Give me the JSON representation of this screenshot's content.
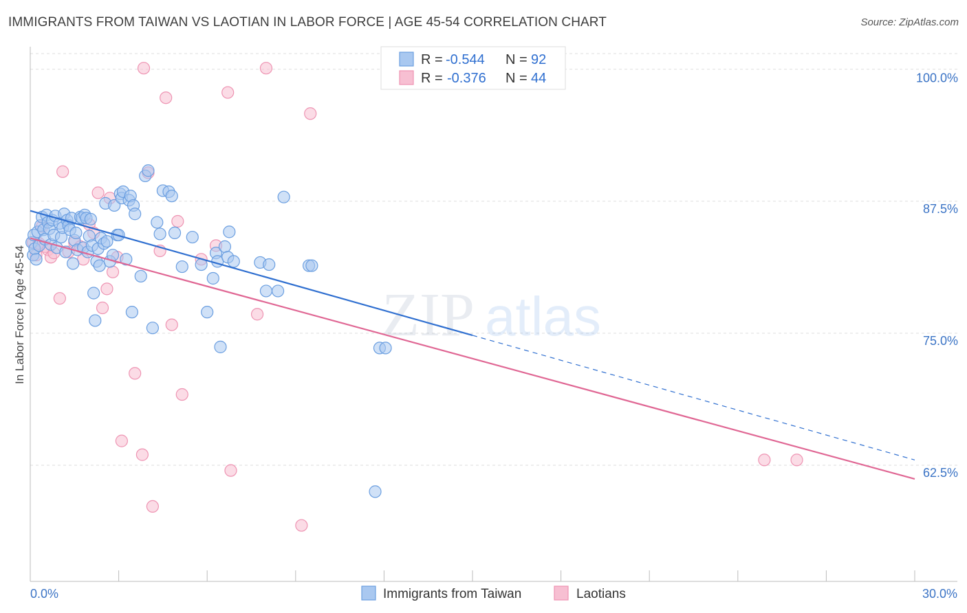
{
  "title": "IMMIGRANTS FROM TAIWAN VS LAOTIAN IN LABOR FORCE | AGE 45-54 CORRELATION CHART",
  "source": "Source: ZipAtlas.com",
  "watermark": {
    "zip": "ZIP",
    "atlas": "atlas"
  },
  "colors": {
    "blue_fill": "#a9c8f0",
    "blue_stroke": "#6a9ee0",
    "blue_line": "#2f6fd0",
    "pink_fill": "#f7bfd2",
    "pink_stroke": "#ee93b2",
    "pink_line": "#e06794",
    "grid": "#dddddd",
    "tick_label": "#3a73c5"
  },
  "stats_legend": {
    "r_label": "R =",
    "n_label": "N =",
    "rows": [
      {
        "series": "Immigrants from Taiwan",
        "r": "-0.544",
        "n": "92"
      },
      {
        "series": "Laotians",
        "r": "-0.376",
        "n": "44"
      }
    ]
  },
  "chart_data": {
    "type": "scatter",
    "title": "IMMIGRANTS FROM TAIWAN VS LAOTIAN IN LABOR FORCE | AGE 45-54 CORRELATION CHART",
    "xlabel": "",
    "ylabel": "In Labor Force | Age 45-54",
    "xlim": [
      0,
      30
    ],
    "ylim": [
      51.5,
      102
    ],
    "x_tick_labels": [
      {
        "value": 0,
        "label": "0.0%"
      },
      {
        "value": 30,
        "label": "30.0%"
      }
    ],
    "y_tick_labels": [
      {
        "value": 100,
        "label": "100.0%"
      },
      {
        "value": 87.5,
        "label": "87.5%"
      },
      {
        "value": 75,
        "label": "75.0%"
      },
      {
        "value": 62.5,
        "label": "62.5%"
      }
    ],
    "grid": true,
    "legend_position": "top-center and bottom",
    "series": [
      {
        "name": "Immigrants from Taiwan",
        "color": "#a9c8f0",
        "trend": {
          "x": [
            0,
            15
          ],
          "y": [
            86.6,
            74.8
          ],
          "dashed_extension": {
            "x": [
              15,
              30
            ],
            "y": [
              74.8,
              63.0
            ]
          }
        },
        "points": [
          [
            0.05,
            83.6
          ],
          [
            0.1,
            82.4
          ],
          [
            0.12,
            84.3
          ],
          [
            0.15,
            83.0
          ],
          [
            0.2,
            82.0
          ],
          [
            0.25,
            84.6
          ],
          [
            0.3,
            83.3
          ],
          [
            0.35,
            85.2
          ],
          [
            0.4,
            86.0
          ],
          [
            0.45,
            84.8
          ],
          [
            0.5,
            83.9
          ],
          [
            0.55,
            86.2
          ],
          [
            0.6,
            85.5
          ],
          [
            0.65,
            84.9
          ],
          [
            0.7,
            83.4
          ],
          [
            0.75,
            85.7
          ],
          [
            0.8,
            84.3
          ],
          [
            0.85,
            86.1
          ],
          [
            0.9,
            83.1
          ],
          [
            1.0,
            85.4
          ],
          [
            1.05,
            84.1
          ],
          [
            1.1,
            85.0
          ],
          [
            1.15,
            86.3
          ],
          [
            1.2,
            82.7
          ],
          [
            1.25,
            85.7
          ],
          [
            1.3,
            85.2
          ],
          [
            1.35,
            84.8
          ],
          [
            1.4,
            85.9
          ],
          [
            1.45,
            81.6
          ],
          [
            1.5,
            83.8
          ],
          [
            1.55,
            84.5
          ],
          [
            1.6,
            82.9
          ],
          [
            1.7,
            86.0
          ],
          [
            1.75,
            85.9
          ],
          [
            1.8,
            83.1
          ],
          [
            1.85,
            86.2
          ],
          [
            1.9,
            85.9
          ],
          [
            1.95,
            82.7
          ],
          [
            2.0,
            84.2
          ],
          [
            2.05,
            85.8
          ],
          [
            2.1,
            83.3
          ],
          [
            2.15,
            78.8
          ],
          [
            2.2,
            76.2
          ],
          [
            2.25,
            81.8
          ],
          [
            2.3,
            83.0
          ],
          [
            2.35,
            81.4
          ],
          [
            2.4,
            84.0
          ],
          [
            2.5,
            83.5
          ],
          [
            2.55,
            87.3
          ],
          [
            2.6,
            83.7
          ],
          [
            2.7,
            81.8
          ],
          [
            2.8,
            82.4
          ],
          [
            2.85,
            87.1
          ],
          [
            2.95,
            84.3
          ],
          [
            3.0,
            84.3
          ],
          [
            3.05,
            88.2
          ],
          [
            3.1,
            87.8
          ],
          [
            3.15,
            88.4
          ],
          [
            3.25,
            82.0
          ],
          [
            3.35,
            87.6
          ],
          [
            3.4,
            88.0
          ],
          [
            3.45,
            77.0
          ],
          [
            3.5,
            87.1
          ],
          [
            3.55,
            86.3
          ],
          [
            3.75,
            80.4
          ],
          [
            3.9,
            89.9
          ],
          [
            4.0,
            90.4
          ],
          [
            4.15,
            75.5
          ],
          [
            4.3,
            85.5
          ],
          [
            4.4,
            84.4
          ],
          [
            4.5,
            88.5
          ],
          [
            4.7,
            88.4
          ],
          [
            4.8,
            88.0
          ],
          [
            4.9,
            84.5
          ],
          [
            5.15,
            81.3
          ],
          [
            5.5,
            84.1
          ],
          [
            5.8,
            81.5
          ],
          [
            6.0,
            77.0
          ],
          [
            6.2,
            80.2
          ],
          [
            6.3,
            82.6
          ],
          [
            6.35,
            81.8
          ],
          [
            6.45,
            73.7
          ],
          [
            6.6,
            83.2
          ],
          [
            6.7,
            82.2
          ],
          [
            6.75,
            84.6
          ],
          [
            6.9,
            81.8
          ],
          [
            7.8,
            81.7
          ],
          [
            8.0,
            79.0
          ],
          [
            8.1,
            81.5
          ],
          [
            8.4,
            79.0
          ],
          [
            8.6,
            87.9
          ],
          [
            9.45,
            81.4
          ],
          [
            9.55,
            81.4
          ],
          [
            11.85,
            73.6
          ],
          [
            12.05,
            73.6
          ],
          [
            11.7,
            60.0
          ]
        ]
      },
      {
        "name": "Laotians",
        "color": "#f7bfd2",
        "trend": {
          "x": [
            0,
            30
          ],
          "y": [
            84.0,
            61.2
          ]
        },
        "points": [
          [
            0.1,
            83.6
          ],
          [
            0.2,
            82.4
          ],
          [
            0.3,
            83.5
          ],
          [
            0.4,
            85.1
          ],
          [
            0.5,
            83.2
          ],
          [
            0.6,
            82.9
          ],
          [
            0.7,
            82.2
          ],
          [
            0.8,
            82.6
          ],
          [
            1.0,
            78.3
          ],
          [
            1.1,
            90.3
          ],
          [
            1.3,
            82.7
          ],
          [
            1.5,
            83.6
          ],
          [
            1.7,
            83.2
          ],
          [
            1.8,
            82.0
          ],
          [
            2.0,
            85.3
          ],
          [
            2.15,
            84.5
          ],
          [
            2.3,
            88.3
          ],
          [
            2.45,
            77.4
          ],
          [
            2.6,
            79.2
          ],
          [
            2.7,
            87.8
          ],
          [
            2.8,
            80.8
          ],
          [
            2.95,
            82.2
          ],
          [
            3.1,
            64.8
          ],
          [
            3.55,
            71.2
          ],
          [
            3.8,
            63.5
          ],
          [
            3.85,
            100.1
          ],
          [
            4.0,
            90.2
          ],
          [
            4.15,
            58.6
          ],
          [
            4.4,
            82.8
          ],
          [
            4.6,
            97.3
          ],
          [
            4.8,
            75.8
          ],
          [
            5.0,
            85.6
          ],
          [
            5.15,
            69.2
          ],
          [
            5.8,
            82.0
          ],
          [
            6.3,
            83.3
          ],
          [
            6.7,
            97.8
          ],
          [
            6.8,
            62.0
          ],
          [
            7.7,
            76.8
          ],
          [
            8.0,
            100.1
          ],
          [
            9.2,
            56.8
          ],
          [
            9.5,
            95.8
          ],
          [
            24.9,
            63.0
          ],
          [
            26.0,
            63.0
          ]
        ]
      }
    ]
  },
  "bottom_legend": [
    {
      "label": "Immigrants from Taiwan"
    },
    {
      "label": "Laotians"
    }
  ]
}
